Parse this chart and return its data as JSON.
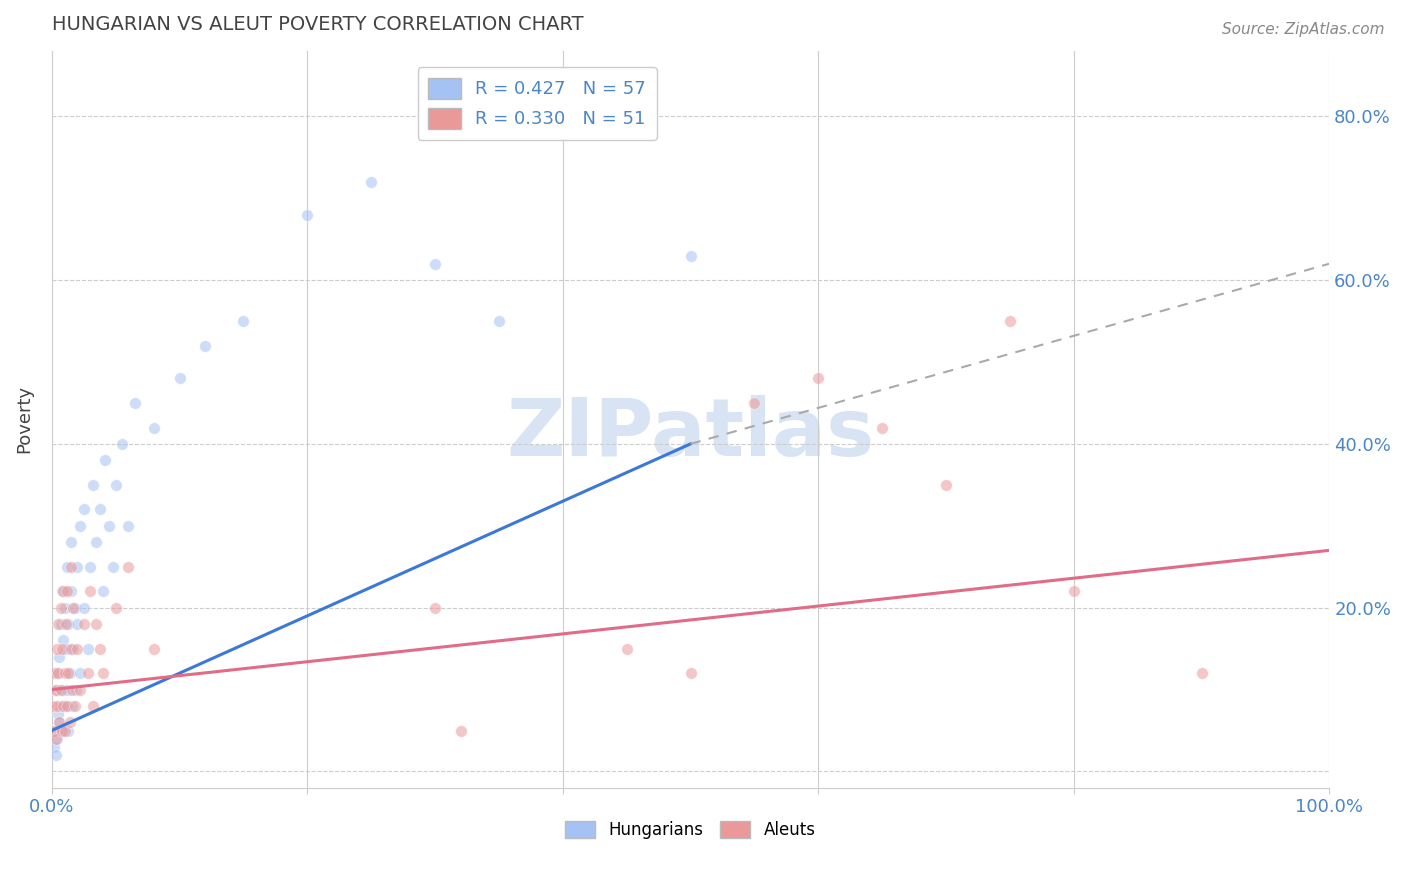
{
  "title": "HUNGARIAN VS ALEUT POVERTY CORRELATION CHART",
  "source": "Source: ZipAtlas.com",
  "ylabel": "Poverty",
  "xlim": [
    0,
    1.0
  ],
  "ylim": [
    -0.02,
    0.88
  ],
  "x_ticks": [
    0.0,
    0.2,
    0.4,
    0.6,
    0.8,
    1.0
  ],
  "x_tick_labels": [
    "0.0%",
    "",
    "",
    "",
    "",
    "100.0%"
  ],
  "y_ticks": [
    0.0,
    0.2,
    0.4,
    0.6,
    0.8
  ],
  "y_tick_labels_right": [
    "",
    "20.0%",
    "40.0%",
    "60.0%",
    "80.0%"
  ],
  "hungarian_color": "#a4c2f4",
  "aleut_color": "#ea9999",
  "hungarian_line_color": "#3c78d8",
  "aleut_line_color": "#e06c87",
  "dash_color": "#aaaaaa",
  "hungarian_R": 0.427,
  "hungarian_N": 57,
  "aleut_R": 0.33,
  "aleut_N": 51,
  "background_color": "#ffffff",
  "grid_color": "#cccccc",
  "title_color": "#434343",
  "axis_color": "#4a86c8",
  "scatter_alpha": 0.55,
  "scatter_size": 70,
  "hungarian_line_x": [
    0.0,
    0.5
  ],
  "hungarian_line_y": [
    0.05,
    0.4
  ],
  "dash_line_x": [
    0.5,
    1.0
  ],
  "dash_line_y": [
    0.4,
    0.62
  ],
  "aleut_line_x": [
    0.0,
    1.0
  ],
  "aleut_line_y": [
    0.1,
    0.27
  ],
  "hungarian_scatter": [
    [
      0.001,
      0.05
    ],
    [
      0.002,
      0.03
    ],
    [
      0.003,
      0.02
    ],
    [
      0.003,
      0.1
    ],
    [
      0.004,
      0.04
    ],
    [
      0.005,
      0.07
    ],
    [
      0.005,
      0.12
    ],
    [
      0.006,
      0.06
    ],
    [
      0.006,
      0.14
    ],
    [
      0.007,
      0.08
    ],
    [
      0.007,
      0.18
    ],
    [
      0.008,
      0.05
    ],
    [
      0.008,
      0.22
    ],
    [
      0.009,
      0.1
    ],
    [
      0.009,
      0.16
    ],
    [
      0.01,
      0.08
    ],
    [
      0.01,
      0.2
    ],
    [
      0.011,
      0.15
    ],
    [
      0.012,
      0.1
    ],
    [
      0.012,
      0.25
    ],
    [
      0.013,
      0.05
    ],
    [
      0.013,
      0.18
    ],
    [
      0.014,
      0.12
    ],
    [
      0.015,
      0.22
    ],
    [
      0.015,
      0.28
    ],
    [
      0.016,
      0.08
    ],
    [
      0.017,
      0.15
    ],
    [
      0.018,
      0.2
    ],
    [
      0.019,
      0.1
    ],
    [
      0.02,
      0.18
    ],
    [
      0.02,
      0.25
    ],
    [
      0.022,
      0.12
    ],
    [
      0.022,
      0.3
    ],
    [
      0.025,
      0.2
    ],
    [
      0.025,
      0.32
    ],
    [
      0.028,
      0.15
    ],
    [
      0.03,
      0.25
    ],
    [
      0.032,
      0.35
    ],
    [
      0.035,
      0.28
    ],
    [
      0.038,
      0.32
    ],
    [
      0.04,
      0.22
    ],
    [
      0.042,
      0.38
    ],
    [
      0.045,
      0.3
    ],
    [
      0.048,
      0.25
    ],
    [
      0.05,
      0.35
    ],
    [
      0.055,
      0.4
    ],
    [
      0.06,
      0.3
    ],
    [
      0.065,
      0.45
    ],
    [
      0.08,
      0.42
    ],
    [
      0.1,
      0.48
    ],
    [
      0.12,
      0.52
    ],
    [
      0.15,
      0.55
    ],
    [
      0.2,
      0.68
    ],
    [
      0.25,
      0.72
    ],
    [
      0.3,
      0.62
    ],
    [
      0.35,
      0.55
    ],
    [
      0.5,
      0.63
    ]
  ],
  "aleut_scatter": [
    [
      0.001,
      0.08
    ],
    [
      0.002,
      0.12
    ],
    [
      0.002,
      0.05
    ],
    [
      0.003,
      0.1
    ],
    [
      0.003,
      0.04
    ],
    [
      0.004,
      0.15
    ],
    [
      0.004,
      0.08
    ],
    [
      0.005,
      0.12
    ],
    [
      0.005,
      0.18
    ],
    [
      0.006,
      0.06
    ],
    [
      0.007,
      0.1
    ],
    [
      0.007,
      0.2
    ],
    [
      0.008,
      0.05
    ],
    [
      0.008,
      0.15
    ],
    [
      0.009,
      0.08
    ],
    [
      0.009,
      0.22
    ],
    [
      0.01,
      0.12
    ],
    [
      0.01,
      0.05
    ],
    [
      0.011,
      0.18
    ],
    [
      0.012,
      0.08
    ],
    [
      0.012,
      0.22
    ],
    [
      0.013,
      0.12
    ],
    [
      0.014,
      0.06
    ],
    [
      0.015,
      0.15
    ],
    [
      0.015,
      0.25
    ],
    [
      0.016,
      0.1
    ],
    [
      0.017,
      0.2
    ],
    [
      0.018,
      0.08
    ],
    [
      0.02,
      0.15
    ],
    [
      0.022,
      0.1
    ],
    [
      0.025,
      0.18
    ],
    [
      0.028,
      0.12
    ],
    [
      0.03,
      0.22
    ],
    [
      0.032,
      0.08
    ],
    [
      0.035,
      0.18
    ],
    [
      0.038,
      0.15
    ],
    [
      0.04,
      0.12
    ],
    [
      0.05,
      0.2
    ],
    [
      0.06,
      0.25
    ],
    [
      0.08,
      0.15
    ],
    [
      0.3,
      0.2
    ],
    [
      0.32,
      0.05
    ],
    [
      0.45,
      0.15
    ],
    [
      0.5,
      0.12
    ],
    [
      0.55,
      0.45
    ],
    [
      0.6,
      0.48
    ],
    [
      0.65,
      0.42
    ],
    [
      0.7,
      0.35
    ],
    [
      0.75,
      0.55
    ],
    [
      0.8,
      0.22
    ],
    [
      0.9,
      0.12
    ]
  ],
  "watermark": "ZIPatlas",
  "watermark_color": "#c8d8ee",
  "legend_label_hungarian": "R = 0.427   N = 57",
  "legend_label_aleut": "R = 0.330   N = 51",
  "bottom_legend_hungarian": "Hungarians",
  "bottom_legend_aleut": "Aleuts"
}
